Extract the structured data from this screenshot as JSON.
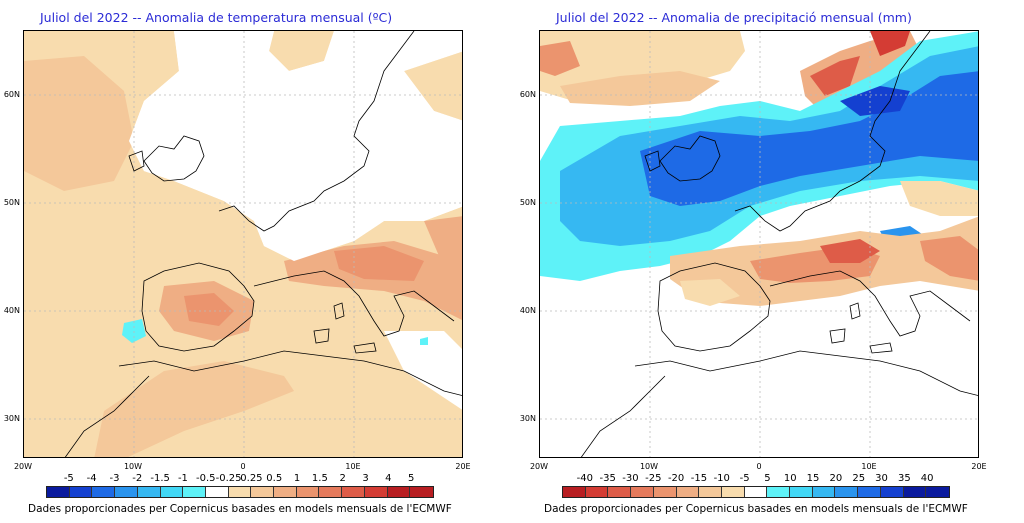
{
  "left_map": {
    "title": "Juliol del 2022 -- Anomalia de temperatura mensual (ºC)",
    "lat_labels": [
      "60N",
      "50N",
      "40N",
      "30N"
    ],
    "lon_labels": [
      "20W",
      "10W",
      "0",
      "10E",
      "20E"
    ],
    "colorbar_labels": [
      "-5",
      "-4",
      "-3",
      "-2",
      "-1.5",
      "-1",
      "-0.5",
      "-0.25",
      "0.25",
      "0.5",
      "1",
      "1.5",
      "2",
      "3",
      "4",
      "5"
    ],
    "colorbar_colors": [
      "#0a1a9e",
      "#1440d0",
      "#1e6ae6",
      "#2a94ee",
      "#36b8f2",
      "#42d8f6",
      "#5ef2f8",
      "#ffffff",
      "#f8dcae",
      "#f4c89a",
      "#efae84",
      "#eb946e",
      "#e57a5c",
      "#de5c48",
      "#d43c34",
      "#b81e22"
    ],
    "credit": "Dades proporcionades per Copernicus basades en models mensuals de l'ECMWF"
  },
  "right_map": {
    "title": "Juliol del 2022 -- Anomalia de precipitació mensual (mm)",
    "lat_labels": [
      "60N",
      "50N",
      "40N",
      "30N"
    ],
    "lon_labels": [
      "20W",
      "10W",
      "0",
      "10E",
      "20E"
    ],
    "colorbar_labels": [
      "-40",
      "-35",
      "-30",
      "-25",
      "-20",
      "-15",
      "-10",
      "-5",
      "5",
      "10",
      "15",
      "20",
      "25",
      "30",
      "35",
      "40"
    ],
    "colorbar_colors": [
      "#b81e22",
      "#d43c34",
      "#de5c48",
      "#e57a5c",
      "#eb946e",
      "#efae84",
      "#f4c89a",
      "#f8dcae",
      "#ffffff",
      "#5ef2f8",
      "#42d8f6",
      "#36b8f2",
      "#2a94ee",
      "#1e6ae6",
      "#1440d0",
      "#0a1a9e"
    ],
    "credit": "Dades proporcionades per Copernicus basades en models mensuals de l'ECMWF"
  }
}
